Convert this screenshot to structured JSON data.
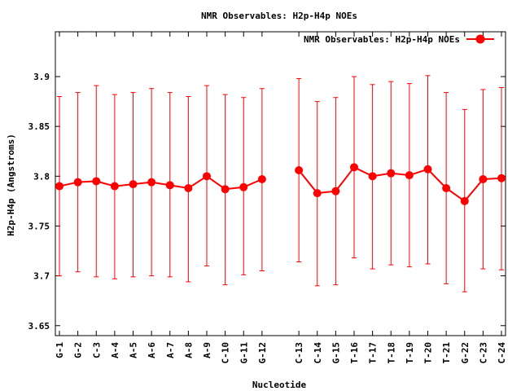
{
  "chart_data": {
    "type": "line",
    "title": "NMR Observables: H2p-H4p NOEs",
    "xlabel": "Nucleotide",
    "ylabel": "H2p-H4p (Angstroms)",
    "ylim": [
      3.64,
      3.945
    ],
    "yticks": [
      "3.65",
      "3.7",
      "3.75",
      "3.8",
      "3.85",
      "3.9"
    ],
    "legend": {
      "position": "top-right",
      "label": "NMR Observables: H2p-H4p NOEs"
    },
    "grid": false,
    "colors": {
      "series": "#ff0000",
      "axis": "#000000",
      "background": "#ffffff"
    },
    "categories": [
      "G-1",
      "G-2",
      "C-3",
      "A-4",
      "A-5",
      "A-6",
      "A-7",
      "A-8",
      "A-9",
      "C-10",
      "G-11",
      "G-12",
      "",
      "C-13",
      "C-14",
      "G-15",
      "T-16",
      "T-17",
      "T-18",
      "T-19",
      "T-20",
      "T-21",
      "G-22",
      "C-23",
      "C-24"
    ],
    "series": [
      {
        "name": "NMR Observables: H2p-H4p NOEs",
        "values": [
          3.79,
          3.794,
          3.795,
          3.79,
          3.792,
          3.794,
          3.791,
          3.788,
          3.8,
          3.787,
          3.789,
          3.797,
          null,
          3.806,
          3.783,
          3.785,
          3.809,
          3.8,
          3.803,
          3.801,
          3.807,
          3.788,
          3.775,
          3.797,
          3.798
        ],
        "err_low": [
          3.7,
          3.704,
          3.699,
          3.697,
          3.699,
          3.7,
          3.699,
          3.694,
          3.71,
          3.691,
          3.701,
          3.705,
          null,
          3.714,
          3.69,
          3.691,
          3.718,
          3.707,
          3.711,
          3.709,
          3.712,
          3.692,
          3.684,
          3.707,
          3.706
        ],
        "err_high": [
          3.88,
          3.884,
          3.891,
          3.882,
          3.884,
          3.888,
          3.884,
          3.88,
          3.891,
          3.882,
          3.879,
          3.888,
          null,
          3.898,
          3.875,
          3.879,
          3.9,
          3.892,
          3.895,
          3.893,
          3.901,
          3.884,
          3.867,
          3.887,
          3.889
        ]
      }
    ]
  }
}
